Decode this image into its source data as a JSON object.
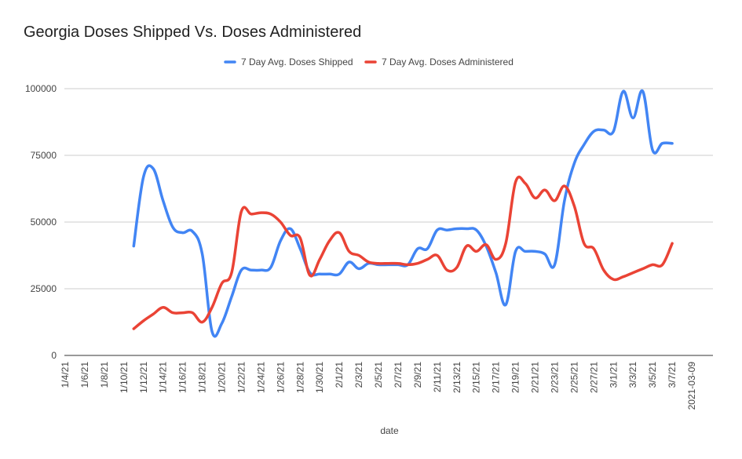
{
  "chart_data": {
    "type": "line",
    "title": "Georgia Doses Shipped Vs. Doses Administered",
    "xlabel": "date",
    "ylabel": "",
    "ylim": [
      0,
      100000
    ],
    "y_ticks": [
      0,
      25000,
      50000,
      75000,
      100000
    ],
    "y_tick_labels": [
      "0",
      "25000",
      "50000",
      "75000",
      "100000"
    ],
    "grid": "horizontal",
    "legend_position": "top",
    "x_tick_labels": [
      "1/4/21",
      "1/6/21",
      "1/8/21",
      "1/10/21",
      "1/12/21",
      "1/14/21",
      "1/16/21",
      "1/18/21",
      "1/20/21",
      "1/22/21",
      "1/24/21",
      "1/26/21",
      "1/28/21",
      "1/30/21",
      "2/1/21",
      "2/3/21",
      "2/5/21",
      "2/7/21",
      "2/9/21",
      "2/11/21",
      "2/13/21",
      "2/15/21",
      "2/17/21",
      "2/19/21",
      "2/21/21",
      "2/23/21",
      "2/25/21",
      "2/27/21",
      "3/1/21",
      "3/3/21",
      "3/5/21",
      "3/7/21",
      "2021-03-09"
    ],
    "series": [
      {
        "name": "7 Day Avg. Doses Shipped",
        "color": "#4285f4",
        "points": [
          [
            "2021-01-11",
            41000
          ],
          [
            "2021-01-12",
            67000
          ],
          [
            "2021-01-13",
            70000
          ],
          [
            "2021-01-14",
            58000
          ],
          [
            "2021-01-15",
            48000
          ],
          [
            "2021-01-16",
            46000
          ],
          [
            "2021-01-17",
            46500
          ],
          [
            "2021-01-18",
            38000
          ],
          [
            "2021-01-19",
            9000
          ],
          [
            "2021-01-20",
            12000
          ],
          [
            "2021-01-21",
            22000
          ],
          [
            "2021-01-22",
            32000
          ],
          [
            "2021-01-23",
            32000
          ],
          [
            "2021-01-24",
            32000
          ],
          [
            "2021-01-25",
            33000
          ],
          [
            "2021-01-26",
            43000
          ],
          [
            "2021-01-27",
            47500
          ],
          [
            "2021-01-28",
            40000
          ],
          [
            "2021-01-29",
            31000
          ],
          [
            "2021-01-30",
            30500
          ],
          [
            "2021-01-31",
            30500
          ],
          [
            "2021-02-01",
            30500
          ],
          [
            "2021-02-02",
            35000
          ],
          [
            "2021-02-03",
            32500
          ],
          [
            "2021-02-04",
            34500
          ],
          [
            "2021-02-05",
            34000
          ],
          [
            "2021-02-06",
            34000
          ],
          [
            "2021-02-07",
            34000
          ],
          [
            "2021-02-08",
            34000
          ],
          [
            "2021-02-09",
            40000
          ],
          [
            "2021-02-10",
            40000
          ],
          [
            "2021-02-11",
            47000
          ],
          [
            "2021-02-12",
            47000
          ],
          [
            "2021-02-13",
            47500
          ],
          [
            "2021-02-14",
            47500
          ],
          [
            "2021-02-15",
            47000
          ],
          [
            "2021-02-16",
            41000
          ],
          [
            "2021-02-17",
            31000
          ],
          [
            "2021-02-18",
            19000
          ],
          [
            "2021-02-19",
            39000
          ],
          [
            "2021-02-20",
            39000
          ],
          [
            "2021-02-21",
            39000
          ],
          [
            "2021-02-22",
            38000
          ],
          [
            "2021-02-23",
            34000
          ],
          [
            "2021-02-24",
            58000
          ],
          [
            "2021-02-25",
            72000
          ],
          [
            "2021-02-26",
            79000
          ],
          [
            "2021-02-27",
            84000
          ],
          [
            "2021-02-28",
            84500
          ],
          [
            "2021-03-01",
            84000
          ],
          [
            "2021-03-02",
            99000
          ],
          [
            "2021-03-03",
            89000
          ],
          [
            "2021-03-04",
            99000
          ],
          [
            "2021-03-05",
            77000
          ],
          [
            "2021-03-06",
            79500
          ],
          [
            "2021-03-07",
            79500
          ]
        ]
      },
      {
        "name": "7 Day Avg. Doses Administered",
        "color": "#ea4335",
        "points": [
          [
            "2021-01-11",
            10000
          ],
          [
            "2021-01-12",
            13000
          ],
          [
            "2021-01-13",
            15500
          ],
          [
            "2021-01-14",
            18000
          ],
          [
            "2021-01-15",
            16000
          ],
          [
            "2021-01-16",
            16000
          ],
          [
            "2021-01-17",
            16000
          ],
          [
            "2021-01-18",
            12500
          ],
          [
            "2021-01-19",
            18000
          ],
          [
            "2021-01-20",
            27000
          ],
          [
            "2021-01-21",
            31000
          ],
          [
            "2021-01-22",
            54000
          ],
          [
            "2021-01-23",
            53000
          ],
          [
            "2021-01-24",
            53500
          ],
          [
            "2021-01-25",
            53000
          ],
          [
            "2021-01-26",
            50000
          ],
          [
            "2021-01-27",
            45000
          ],
          [
            "2021-01-28",
            44000
          ],
          [
            "2021-01-29",
            30000
          ],
          [
            "2021-01-30",
            36000
          ],
          [
            "2021-01-31",
            43000
          ],
          [
            "2021-02-01",
            46000
          ],
          [
            "2021-02-02",
            39000
          ],
          [
            "2021-02-03",
            37500
          ],
          [
            "2021-02-04",
            35000
          ],
          [
            "2021-02-05",
            34500
          ],
          [
            "2021-02-06",
            34500
          ],
          [
            "2021-02-07",
            34500
          ],
          [
            "2021-02-08",
            34000
          ],
          [
            "2021-02-09",
            34500
          ],
          [
            "2021-02-10",
            36000
          ],
          [
            "2021-02-11",
            37500
          ],
          [
            "2021-02-12",
            32000
          ],
          [
            "2021-02-13",
            33000
          ],
          [
            "2021-02-14",
            41000
          ],
          [
            "2021-02-15",
            39000
          ],
          [
            "2021-02-16",
            41500
          ],
          [
            "2021-02-17",
            36000
          ],
          [
            "2021-02-18",
            42000
          ],
          [
            "2021-02-19",
            65000
          ],
          [
            "2021-02-20",
            64500
          ],
          [
            "2021-02-21",
            59000
          ],
          [
            "2021-02-22",
            62000
          ],
          [
            "2021-02-23",
            58000
          ],
          [
            "2021-02-24",
            63500
          ],
          [
            "2021-02-25",
            56000
          ],
          [
            "2021-02-26",
            42000
          ],
          [
            "2021-02-27",
            40000
          ],
          [
            "2021-02-28",
            32000
          ],
          [
            "2021-03-01",
            28500
          ],
          [
            "2021-03-02",
            29500
          ],
          [
            "2021-03-03",
            31000
          ],
          [
            "2021-03-04",
            32500
          ],
          [
            "2021-03-05",
            34000
          ],
          [
            "2021-03-06",
            34000
          ],
          [
            "2021-03-07",
            42000
          ]
        ]
      }
    ]
  }
}
